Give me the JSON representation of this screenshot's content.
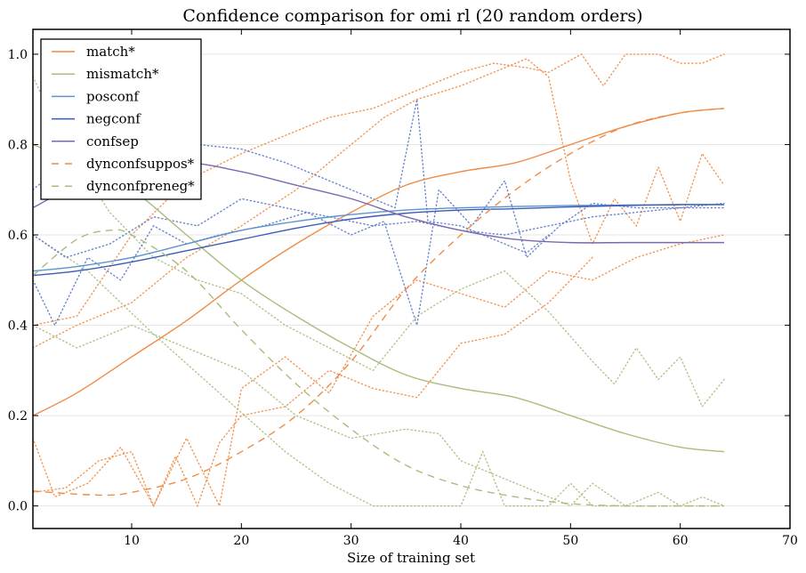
{
  "chart_data": {
    "type": "line",
    "title": "Confidence comparison for omi rl (20 random orders)",
    "xlabel": "Size of training set",
    "ylabel": "",
    "xlim": [
      1,
      70
    ],
    "ylim": [
      -0.05,
      1.055
    ],
    "xticks": [
      10,
      20,
      30,
      40,
      50,
      60,
      70
    ],
    "xtick_labels": [
      "10",
      "20",
      "30",
      "40",
      "50",
      "60",
      "70"
    ],
    "yticks": [
      0.0,
      0.2,
      0.4,
      0.6,
      0.8,
      1.0
    ],
    "ytick_labels": [
      "0.0",
      "0.2",
      "0.4",
      "0.6",
      "0.8",
      "1.0"
    ],
    "grid": "horizontal",
    "legend_position": "top-left",
    "colors": {
      "orange": "#ef8c46",
      "green": "#a8bd7c",
      "lightblue": "#5a94cf",
      "blue": "#3c5cb7",
      "purple": "#7b68ae"
    },
    "series": [
      {
        "name": "match*",
        "style": "solid",
        "color": "#ef8c46",
        "x": [
          1,
          5,
          10,
          15,
          20,
          25,
          30,
          35,
          40,
          45,
          50,
          55,
          60,
          64
        ],
        "y": [
          0.2,
          0.25,
          0.33,
          0.41,
          0.5,
          0.58,
          0.65,
          0.71,
          0.74,
          0.76,
          0.8,
          0.84,
          0.87,
          0.88
        ]
      },
      {
        "name": "mismatch*",
        "style": "solid",
        "color": "#a8bd7c",
        "x": [
          1,
          5,
          10,
          15,
          20,
          25,
          30,
          35,
          40,
          45,
          50,
          55,
          60,
          64
        ],
        "y": [
          0.8,
          0.76,
          0.7,
          0.6,
          0.5,
          0.42,
          0.35,
          0.29,
          0.26,
          0.24,
          0.2,
          0.16,
          0.13,
          0.12
        ]
      },
      {
        "name": "posconf",
        "style": "solid",
        "color": "#5a94cf",
        "x": [
          1,
          5,
          10,
          15,
          20,
          25,
          30,
          35,
          40,
          45,
          50,
          55,
          60,
          64
        ],
        "y": [
          0.52,
          0.53,
          0.55,
          0.58,
          0.61,
          0.63,
          0.645,
          0.655,
          0.66,
          0.663,
          0.665,
          0.666,
          0.667,
          0.667
        ]
      },
      {
        "name": "negconf",
        "style": "solid",
        "color": "#3c5cb7",
        "x": [
          1,
          5,
          10,
          15,
          20,
          25,
          30,
          35,
          40,
          45,
          50,
          55,
          60,
          64
        ],
        "y": [
          0.51,
          0.52,
          0.54,
          0.565,
          0.59,
          0.615,
          0.635,
          0.648,
          0.655,
          0.658,
          0.662,
          0.665,
          0.667,
          0.667
        ]
      },
      {
        "name": "confsep",
        "style": "solid",
        "color": "#7b68ae",
        "x": [
          1,
          5,
          10,
          15,
          20,
          25,
          30,
          35,
          40,
          45,
          50,
          55,
          60,
          64
        ],
        "y": [
          0.66,
          0.71,
          0.75,
          0.76,
          0.74,
          0.71,
          0.68,
          0.64,
          0.61,
          0.59,
          0.583,
          0.583,
          0.583,
          0.583
        ]
      },
      {
        "name": "dynconfsuppos*",
        "style": "dashed",
        "color": "#ef8c46",
        "x": [
          1,
          5,
          8,
          10,
          15,
          20,
          25,
          30,
          35,
          40,
          45,
          50,
          55,
          60,
          64
        ],
        "y": [
          0.033,
          0.026,
          0.024,
          0.03,
          0.06,
          0.12,
          0.2,
          0.32,
          0.48,
          0.6,
          0.7,
          0.78,
          0.84,
          0.87,
          0.88
        ]
      },
      {
        "name": "dynconfpreneg*",
        "style": "dashed",
        "color": "#a8bd7c",
        "x": [
          1,
          5,
          8,
          10,
          15,
          20,
          25,
          30,
          35,
          40,
          45,
          50,
          55,
          60,
          64
        ],
        "y": [
          0.51,
          0.59,
          0.61,
          0.6,
          0.52,
          0.39,
          0.27,
          0.17,
          0.09,
          0.045,
          0.02,
          0.005,
          0.0,
          0.0,
          0.0
        ]
      }
    ],
    "traces": [
      {
        "name": "match-trace-1",
        "style": "dotted",
        "color": "#ef8c46",
        "x": [
          1,
          5,
          10,
          15,
          20,
          25,
          28,
          32,
          35,
          38,
          40,
          43,
          46,
          48,
          51,
          53,
          55,
          58,
          60,
          62,
          64
        ],
        "y": [
          0.4,
          0.42,
          0.6,
          0.72,
          0.78,
          0.83,
          0.86,
          0.88,
          0.91,
          0.94,
          0.96,
          0.98,
          0.97,
          0.96,
          1.0,
          0.93,
          1.0,
          1.0,
          0.98,
          0.98,
          1.0
        ]
      },
      {
        "name": "match-trace-2",
        "style": "dotted",
        "color": "#ef8c46",
        "x": [
          1,
          5,
          10,
          15,
          20,
          25,
          30,
          33,
          36,
          40,
          43,
          46,
          48,
          50,
          52,
          54,
          56,
          58,
          60,
          62,
          64
        ],
        "y": [
          0.35,
          0.4,
          0.45,
          0.55,
          0.62,
          0.7,
          0.8,
          0.86,
          0.9,
          0.93,
          0.96,
          0.99,
          0.95,
          0.72,
          0.58,
          0.68,
          0.62,
          0.75,
          0.63,
          0.78,
          0.71
        ]
      },
      {
        "name": "match-trace-3",
        "style": "dotted",
        "color": "#ef8c46",
        "x": [
          1,
          3,
          6,
          9,
          12,
          15,
          18,
          20,
          24,
          28,
          32,
          36,
          40,
          44,
          48,
          52,
          56,
          60,
          64
        ],
        "y": [
          0.15,
          0.02,
          0.05,
          0.13,
          0.0,
          0.15,
          0.0,
          0.26,
          0.33,
          0.25,
          0.42,
          0.5,
          0.47,
          0.44,
          0.52,
          0.5,
          0.55,
          0.58,
          0.6
        ]
      },
      {
        "name": "match-trace-4",
        "style": "dotted",
        "color": "#ef8c46",
        "x": [
          1,
          4,
          7,
          10,
          12,
          14,
          16,
          18,
          20,
          24,
          28,
          32,
          36,
          40,
          44,
          48,
          52
        ],
        "y": [
          0.03,
          0.04,
          0.1,
          0.12,
          0.0,
          0.11,
          0.0,
          0.14,
          0.2,
          0.22,
          0.3,
          0.26,
          0.24,
          0.36,
          0.38,
          0.45,
          0.55
        ]
      },
      {
        "name": "mismatch-trace-1",
        "style": "dotted",
        "color": "#a8bd7c",
        "x": [
          1,
          4,
          8,
          12,
          16,
          20,
          24,
          28,
          32,
          36,
          40,
          44,
          48,
          52,
          54,
          56,
          58,
          60,
          62,
          64
        ],
        "y": [
          0.95,
          0.8,
          0.65,
          0.55,
          0.5,
          0.47,
          0.4,
          0.35,
          0.3,
          0.42,
          0.48,
          0.52,
          0.43,
          0.32,
          0.27,
          0.35,
          0.28,
          0.33,
          0.22,
          0.28
        ]
      },
      {
        "name": "mismatch-trace-2",
        "style": "dotted",
        "color": "#a8bd7c",
        "x": [
          1,
          5,
          10,
          15,
          20,
          25,
          30,
          35,
          38,
          40,
          42,
          45,
          48,
          50,
          52,
          55,
          58,
          60,
          62,
          64
        ],
        "y": [
          0.4,
          0.35,
          0.4,
          0.35,
          0.3,
          0.2,
          0.15,
          0.17,
          0.16,
          0.1,
          0.08,
          0.05,
          0.02,
          0.0,
          0.05,
          0.0,
          0.03,
          0.0,
          0.02,
          0.0
        ]
      },
      {
        "name": "mismatch-trace-3",
        "style": "dotted",
        "color": "#a8bd7c",
        "x": [
          1,
          6,
          12,
          18,
          24,
          28,
          32,
          36,
          40,
          42,
          44,
          46,
          48,
          50,
          52,
          56,
          60,
          64
        ],
        "y": [
          0.6,
          0.52,
          0.38,
          0.25,
          0.12,
          0.05,
          0.0,
          0.0,
          0.0,
          0.12,
          0.0,
          0.0,
          0.0,
          0.05,
          0.0,
          0.0,
          0.0,
          0.0
        ]
      },
      {
        "name": "conf-trace-1",
        "style": "dotted",
        "color": "#5a78c8",
        "x": [
          1,
          4,
          8,
          12,
          16,
          20,
          24,
          28,
          32,
          34,
          36,
          37,
          40,
          44,
          46,
          48
        ],
        "y": [
          0.7,
          0.76,
          0.79,
          0.8,
          0.8,
          0.79,
          0.76,
          0.72,
          0.68,
          0.66,
          0.9,
          0.63,
          0.62,
          0.58,
          0.56,
          0.6
        ]
      },
      {
        "name": "conf-trace-2",
        "style": "dotted",
        "color": "#5a78c8",
        "x": [
          1,
          3,
          6,
          9,
          12,
          15,
          18,
          22,
          26,
          30,
          33,
          36,
          38,
          41,
          44,
          46,
          49,
          52,
          56,
          60,
          64
        ],
        "y": [
          0.5,
          0.4,
          0.55,
          0.5,
          0.62,
          0.58,
          0.6,
          0.62,
          0.65,
          0.6,
          0.63,
          0.4,
          0.7,
          0.62,
          0.72,
          0.55,
          0.62,
          0.67,
          0.66,
          0.66,
          0.67
        ]
      },
      {
        "name": "conf-trace-3",
        "style": "dotted",
        "color": "#5a78c8",
        "x": [
          1,
          4,
          8,
          12,
          16,
          20,
          24,
          28,
          32,
          36,
          40,
          44,
          48,
          52,
          56,
          60,
          64
        ],
        "y": [
          0.6,
          0.55,
          0.58,
          0.64,
          0.62,
          0.68,
          0.66,
          0.64,
          0.62,
          0.63,
          0.61,
          0.6,
          0.62,
          0.64,
          0.65,
          0.66,
          0.66
        ]
      }
    ]
  }
}
